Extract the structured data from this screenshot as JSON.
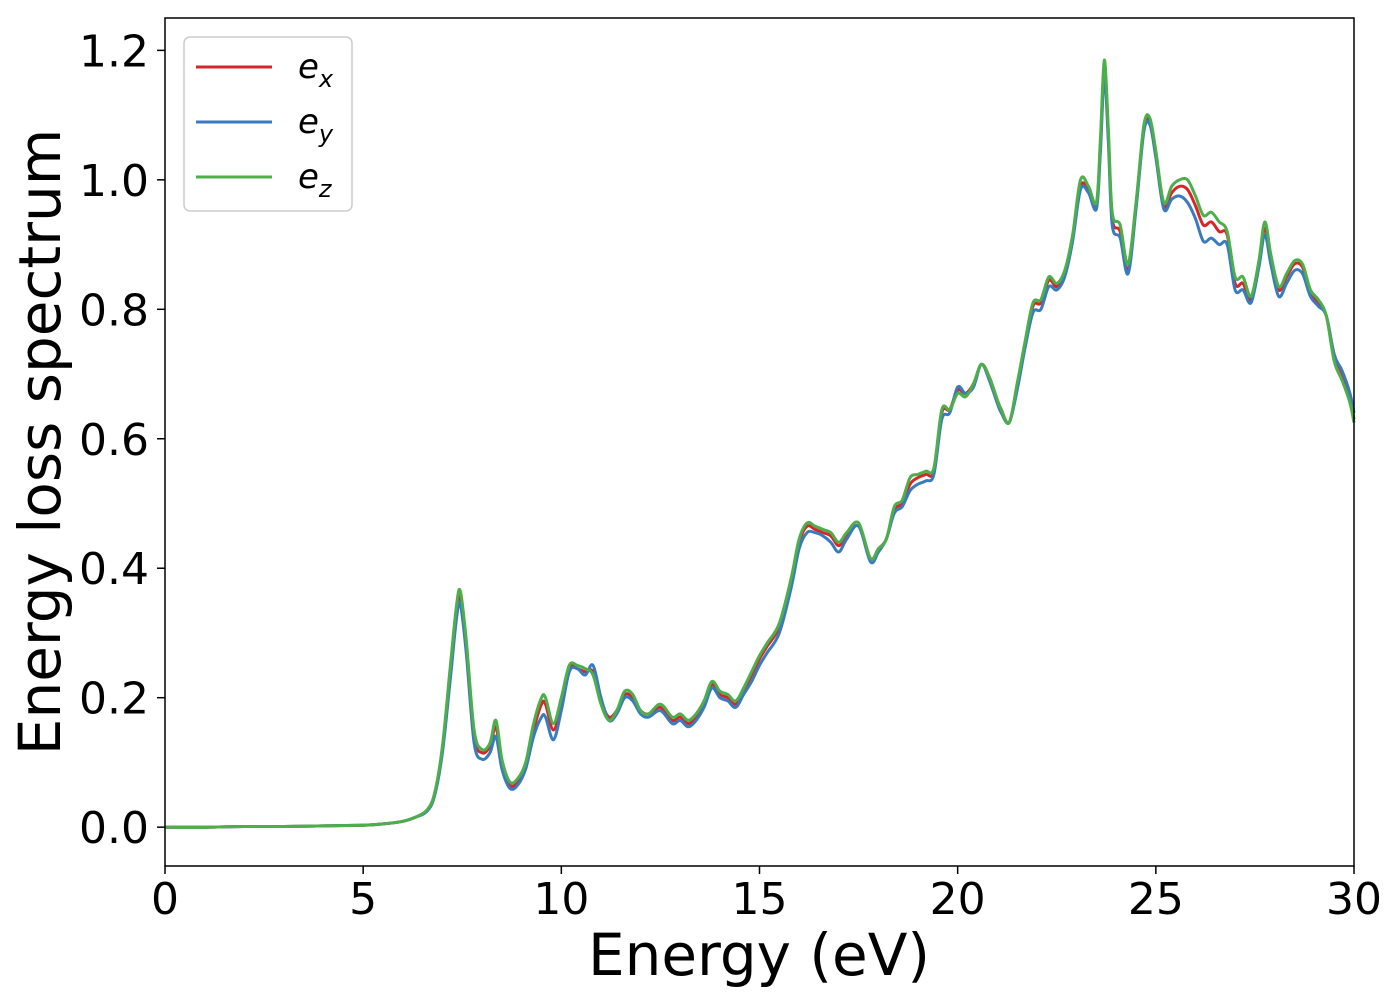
{
  "chart_data": {
    "type": "line",
    "xlabel": "Energy (eV)",
    "ylabel": "Energy loss spectrum",
    "xlim": [
      0,
      30
    ],
    "ylim": [
      -0.06,
      1.25
    ],
    "xticks": [
      0,
      5,
      10,
      15,
      20,
      25,
      30
    ],
    "xtick_labels": [
      "0",
      "5",
      "10",
      "15",
      "20",
      "25",
      "30"
    ],
    "yticks": [
      0.0,
      0.2,
      0.4,
      0.6,
      0.8,
      1.0,
      1.2
    ],
    "ytick_labels": [
      "0.0",
      "0.2",
      "0.4",
      "0.6",
      "0.8",
      "1.0",
      "1.2"
    ],
    "grid": false,
    "legend_position": "top-left",
    "x": [
      0,
      1,
      2,
      3,
      4,
      5,
      5.5,
      6,
      6.3,
      6.6,
      6.8,
      7.0,
      7.2,
      7.35,
      7.45,
      7.6,
      7.8,
      8.0,
      8.2,
      8.35,
      8.5,
      8.7,
      8.9,
      9.1,
      9.3,
      9.5,
      9.6,
      9.8,
      10.0,
      10.2,
      10.4,
      10.6,
      10.8,
      11.0,
      11.2,
      11.4,
      11.6,
      11.8,
      12.0,
      12.2,
      12.5,
      12.8,
      13.0,
      13.2,
      13.4,
      13.6,
      13.8,
      14.0,
      14.2,
      14.4,
      14.6,
      14.8,
      15.0,
      15.2,
      15.5,
      15.8,
      16.0,
      16.2,
      16.4,
      16.6,
      16.8,
      17.0,
      17.2,
      17.5,
      17.8,
      18.0,
      18.2,
      18.4,
      18.6,
      18.8,
      19.0,
      19.2,
      19.4,
      19.6,
      19.8,
      20.0,
      20.2,
      20.4,
      20.6,
      20.8,
      21.0,
      21.1,
      21.3,
      21.5,
      21.7,
      21.9,
      22.1,
      22.3,
      22.5,
      22.7,
      22.9,
      23.1,
      23.3,
      23.5,
      23.6,
      23.7,
      23.8,
      23.9,
      24.1,
      24.3,
      24.5,
      24.7,
      24.85,
      25.0,
      25.2,
      25.4,
      25.6,
      25.8,
      26.0,
      26.2,
      26.4,
      26.6,
      26.8,
      27.0,
      27.2,
      27.4,
      27.6,
      27.75,
      27.9,
      28.1,
      28.3,
      28.5,
      28.7,
      28.9,
      29.1,
      29.3,
      29.5,
      29.7,
      29.9,
      30.0
    ],
    "series": [
      {
        "name": "ex",
        "color": "#d62728",
        "values": [
          0.0,
          0.0,
          0.001,
          0.001,
          0.002,
          0.003,
          0.005,
          0.009,
          0.015,
          0.025,
          0.05,
          0.12,
          0.24,
          0.33,
          0.355,
          0.28,
          0.14,
          0.115,
          0.125,
          0.155,
          0.1,
          0.065,
          0.07,
          0.095,
          0.15,
          0.19,
          0.19,
          0.15,
          0.19,
          0.245,
          0.245,
          0.24,
          0.24,
          0.195,
          0.17,
          0.18,
          0.205,
          0.2,
          0.18,
          0.175,
          0.185,
          0.165,
          0.17,
          0.16,
          0.17,
          0.19,
          0.22,
          0.205,
          0.2,
          0.19,
          0.21,
          0.235,
          0.26,
          0.28,
          0.31,
          0.38,
          0.44,
          0.465,
          0.46,
          0.455,
          0.45,
          0.435,
          0.45,
          0.465,
          0.415,
          0.43,
          0.445,
          0.49,
          0.5,
          0.53,
          0.54,
          0.545,
          0.55,
          0.64,
          0.645,
          0.675,
          0.67,
          0.685,
          0.715,
          0.695,
          0.66,
          0.645,
          0.625,
          0.68,
          0.745,
          0.805,
          0.81,
          0.845,
          0.835,
          0.855,
          0.91,
          0.99,
          0.985,
          0.96,
          1.05,
          1.175,
          1.07,
          0.94,
          0.92,
          0.86,
          0.96,
          1.08,
          1.09,
          1.04,
          0.96,
          0.98,
          0.99,
          0.985,
          0.96,
          0.93,
          0.935,
          0.92,
          0.915,
          0.84,
          0.84,
          0.815,
          0.87,
          0.925,
          0.88,
          0.83,
          0.85,
          0.87,
          0.865,
          0.825,
          0.81,
          0.79,
          0.73,
          0.7,
          0.66,
          0.63
        ]
      },
      {
        "name": "ey",
        "color": "#3a7bbf",
        "values": [
          0.0,
          0.0,
          0.001,
          0.001,
          0.002,
          0.003,
          0.005,
          0.009,
          0.015,
          0.024,
          0.048,
          0.115,
          0.23,
          0.32,
          0.345,
          0.27,
          0.13,
          0.105,
          0.115,
          0.14,
          0.09,
          0.06,
          0.065,
          0.09,
          0.14,
          0.17,
          0.17,
          0.135,
          0.18,
          0.24,
          0.245,
          0.235,
          0.25,
          0.2,
          0.165,
          0.175,
          0.2,
          0.195,
          0.175,
          0.17,
          0.18,
          0.16,
          0.165,
          0.155,
          0.165,
          0.185,
          0.215,
          0.2,
          0.195,
          0.185,
          0.205,
          0.225,
          0.25,
          0.27,
          0.3,
          0.37,
          0.43,
          0.455,
          0.455,
          0.45,
          0.44,
          0.425,
          0.445,
          0.465,
          0.41,
          0.425,
          0.445,
          0.485,
          0.495,
          0.52,
          0.53,
          0.535,
          0.545,
          0.63,
          0.64,
          0.68,
          0.67,
          0.68,
          0.715,
          0.69,
          0.655,
          0.64,
          0.625,
          0.675,
          0.74,
          0.795,
          0.8,
          0.835,
          0.83,
          0.85,
          0.905,
          0.985,
          0.98,
          0.955,
          1.04,
          1.16,
          1.06,
          0.93,
          0.91,
          0.855,
          0.955,
          1.075,
          1.085,
          1.035,
          0.955,
          0.97,
          0.975,
          0.965,
          0.94,
          0.905,
          0.91,
          0.9,
          0.9,
          0.83,
          0.83,
          0.81,
          0.865,
          0.915,
          0.87,
          0.82,
          0.84,
          0.86,
          0.855,
          0.82,
          0.805,
          0.79,
          0.73,
          0.705,
          0.67,
          0.64
        ]
      },
      {
        "name": "ez",
        "color": "#4daf4a",
        "values": [
          0.0,
          0.0,
          0.001,
          0.001,
          0.002,
          0.003,
          0.005,
          0.009,
          0.015,
          0.026,
          0.052,
          0.125,
          0.25,
          0.34,
          0.365,
          0.29,
          0.15,
          0.12,
          0.13,
          0.165,
          0.105,
          0.07,
          0.075,
          0.1,
          0.16,
          0.2,
          0.2,
          0.16,
          0.2,
          0.25,
          0.25,
          0.245,
          0.235,
          0.19,
          0.165,
          0.18,
          0.21,
          0.205,
          0.18,
          0.175,
          0.19,
          0.17,
          0.175,
          0.165,
          0.175,
          0.195,
          0.225,
          0.21,
          0.205,
          0.195,
          0.215,
          0.24,
          0.265,
          0.285,
          0.315,
          0.385,
          0.445,
          0.47,
          0.465,
          0.46,
          0.455,
          0.44,
          0.455,
          0.47,
          0.415,
          0.43,
          0.445,
          0.495,
          0.505,
          0.54,
          0.545,
          0.55,
          0.555,
          0.645,
          0.645,
          0.67,
          0.665,
          0.685,
          0.715,
          0.695,
          0.66,
          0.645,
          0.625,
          0.685,
          0.75,
          0.81,
          0.815,
          0.85,
          0.84,
          0.86,
          0.915,
          1.0,
          0.99,
          0.965,
          1.06,
          1.185,
          1.08,
          0.95,
          0.93,
          0.87,
          0.965,
          1.085,
          1.095,
          1.045,
          0.965,
          0.99,
          1.0,
          1.0,
          0.975,
          0.945,
          0.95,
          0.935,
          0.92,
          0.85,
          0.85,
          0.82,
          0.875,
          0.935,
          0.885,
          0.835,
          0.855,
          0.875,
          0.87,
          0.83,
          0.815,
          0.79,
          0.72,
          0.69,
          0.655,
          0.625
        ]
      }
    ]
  },
  "legend": {
    "entries": [
      {
        "base": "e",
        "sub": "x"
      },
      {
        "base": "e",
        "sub": "y"
      },
      {
        "base": "e",
        "sub": "z"
      }
    ]
  }
}
